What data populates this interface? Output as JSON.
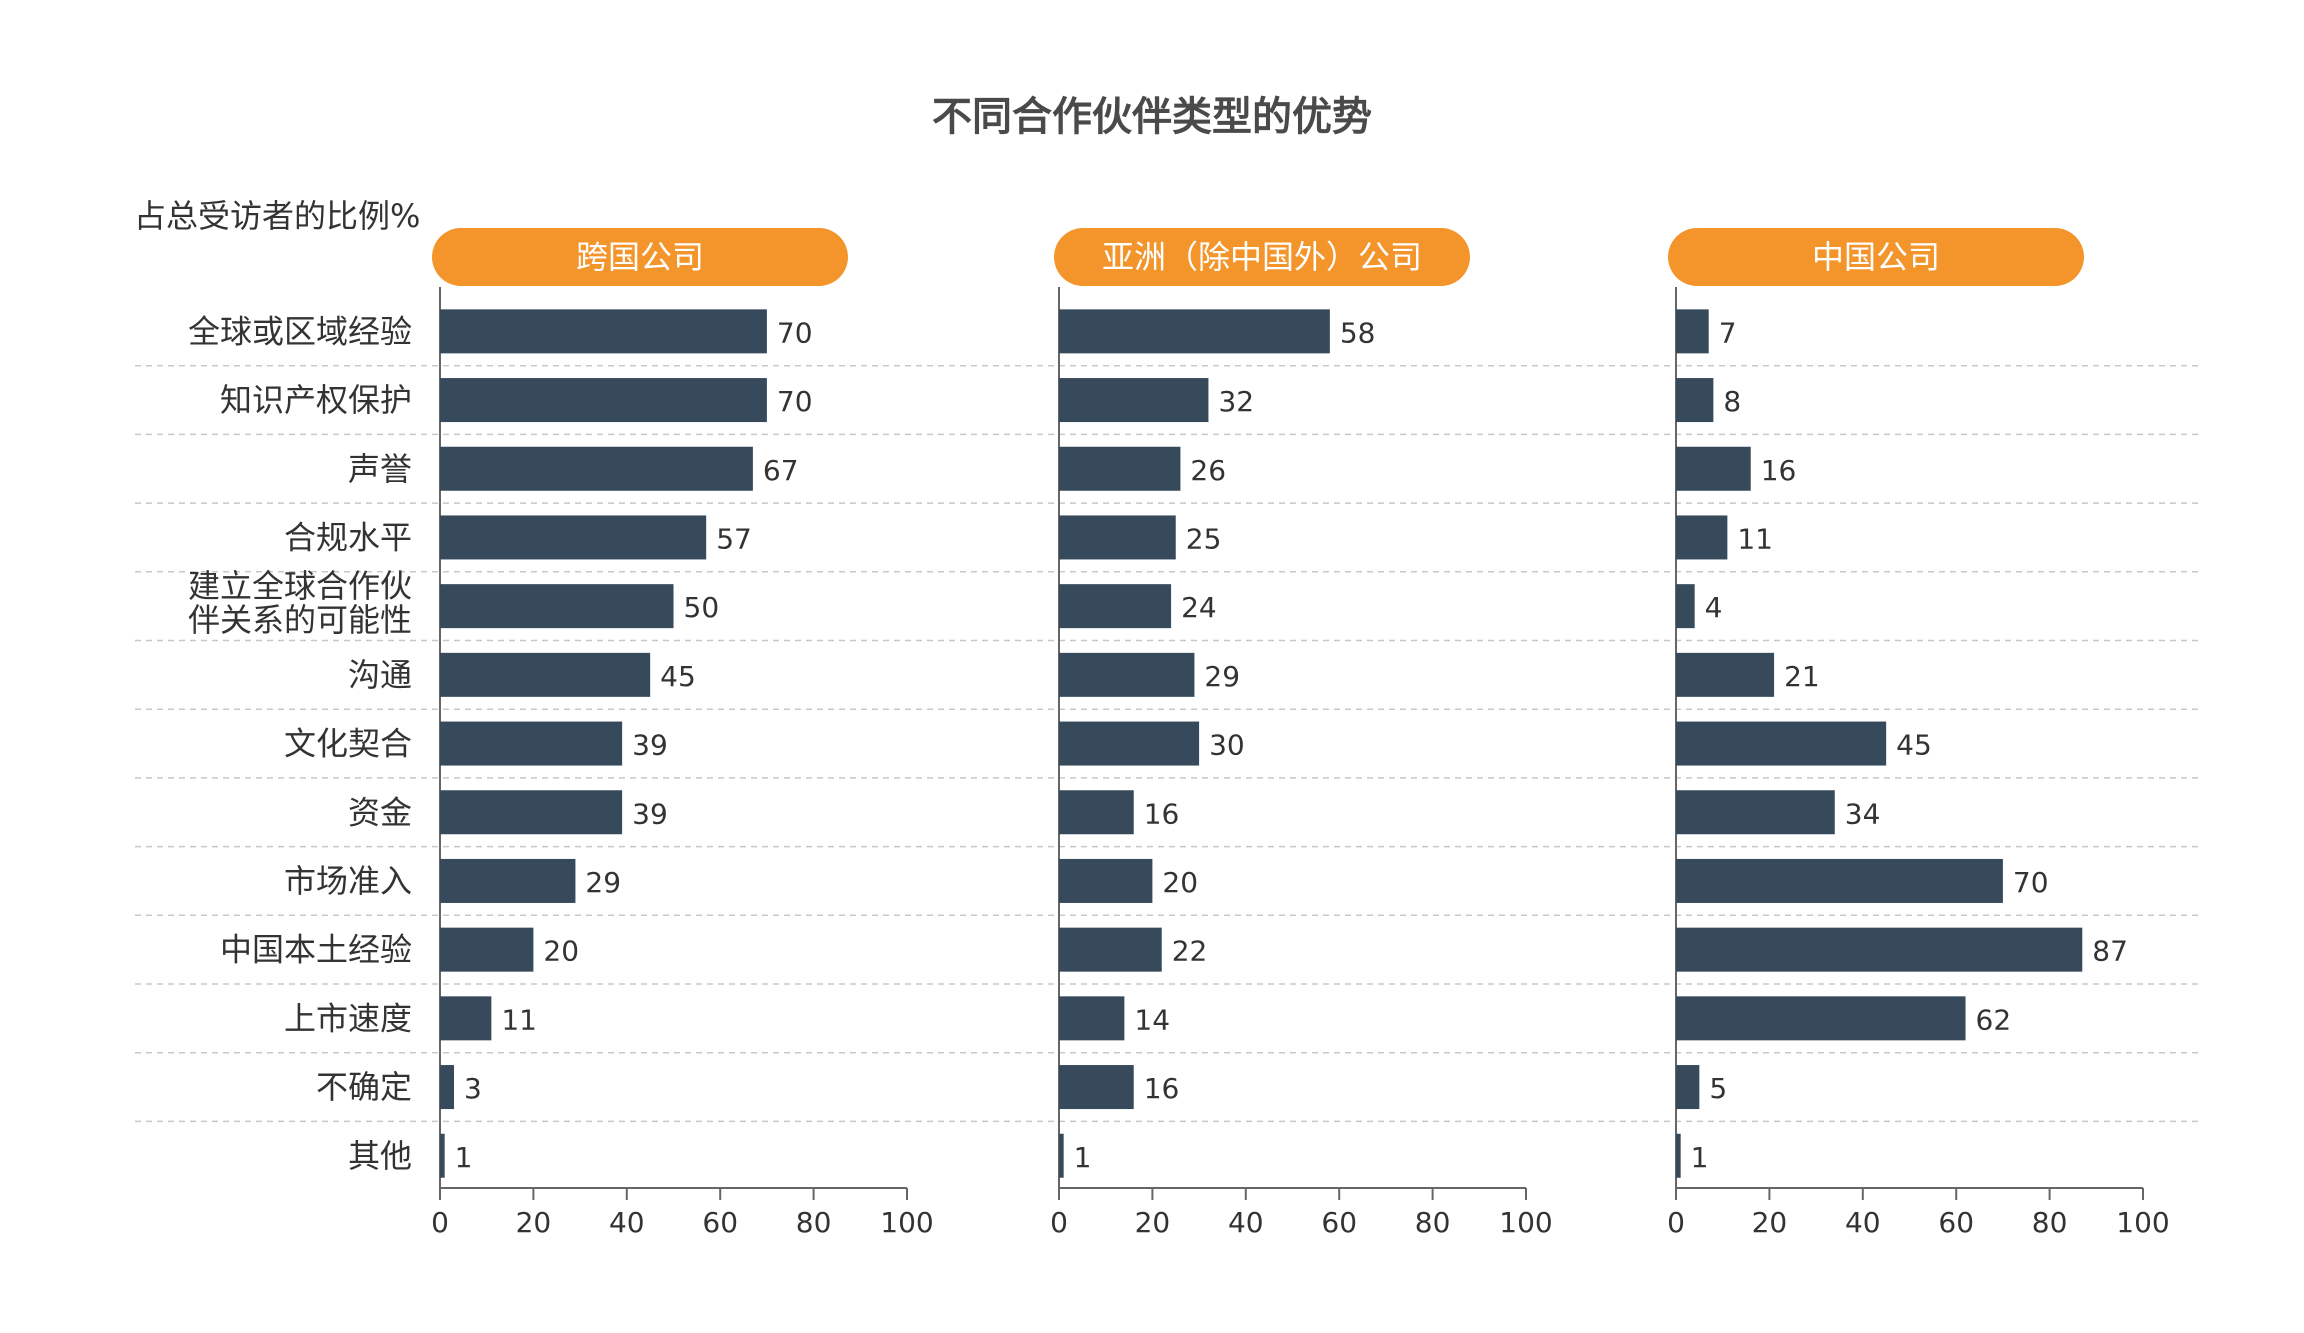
{
  "chart_data": {
    "type": "bar",
    "orientation": "horizontal",
    "title": "不同合作伙伴类型的优势",
    "ylabel": "占总受访者的比例%",
    "xlim": [
      0,
      100
    ],
    "x_ticks": [
      0,
      20,
      40,
      60,
      80,
      100
    ],
    "categories": [
      "全球或区域经验",
      "知识产权保护",
      "声誉",
      "合规水平",
      "建立全球合作伙伴关系的可能性",
      "沟通",
      "文化契合",
      "资金",
      "市场准入",
      "中国本土经验",
      "上市速度",
      "不确定",
      "其他"
    ],
    "category_lines": [
      [
        "全球或区域经验"
      ],
      [
        "知识产权保护"
      ],
      [
        "声誉"
      ],
      [
        "合规水平"
      ],
      [
        "建立全球合作伙",
        "伴关系的可能性"
      ],
      [
        "沟通"
      ],
      [
        "文化契合"
      ],
      [
        "资金"
      ],
      [
        "市场准入"
      ],
      [
        "中国本土经验"
      ],
      [
        "上市速度"
      ],
      [
        "不确定"
      ],
      [
        "其他"
      ]
    ],
    "series": [
      {
        "name": "跨国公司",
        "values": [
          70,
          70,
          67,
          57,
          50,
          45,
          39,
          39,
          29,
          20,
          11,
          3,
          1
        ]
      },
      {
        "name": "亚洲（除中国外）公司",
        "values": [
          58,
          32,
          26,
          25,
          24,
          29,
          30,
          16,
          20,
          22,
          14,
          16,
          1
        ]
      },
      {
        "name": "中国公司",
        "values": [
          7,
          8,
          16,
          11,
          4,
          21,
          45,
          34,
          70,
          87,
          62,
          5,
          1
        ]
      }
    ],
    "grid": false,
    "colors": {
      "bar": "#374a5b",
      "header_fill": "#f4952b",
      "header_text": "#ffffff",
      "text": "#333333",
      "axis": "#666666",
      "divider": "#c8c8c8"
    }
  }
}
